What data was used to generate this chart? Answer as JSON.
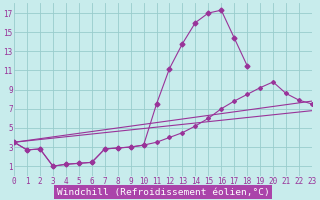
{
  "bg_color": "#c8ecec",
  "line_color": "#993399",
  "grid_color": "#99cccc",
  "xlabel": "Windchill (Refroidissement éolien,°C)",
  "xlabel_color": "#993399",
  "xlabel_bg": "#aa44aa",
  "tick_fontsize": 5.5,
  "xlabel_fontsize": 6.8,
  "xlim_min": 0,
  "xlim_max": 23,
  "ylim_min": 0,
  "ylim_max": 18,
  "yticks": [
    1,
    3,
    5,
    7,
    9,
    11,
    13,
    15,
    17
  ],
  "xticks": [
    0,
    1,
    2,
    3,
    4,
    5,
    6,
    7,
    8,
    9,
    10,
    11,
    12,
    13,
    14,
    15,
    16,
    17,
    18,
    19,
    20,
    21,
    22,
    23
  ],
  "curve1_x": [
    0,
    1,
    2,
    3,
    4,
    5,
    6,
    7,
    8,
    9,
    10,
    11,
    12,
    13,
    14,
    15,
    16,
    17,
    18
  ],
  "curve1_y": [
    3.5,
    2.7,
    2.8,
    1.0,
    1.2,
    1.3,
    1.4,
    2.8,
    2.9,
    3.0,
    3.2,
    7.5,
    11.2,
    13.8,
    16.0,
    17.0,
    17.3,
    14.4,
    11.5
  ],
  "curve2_x": [
    0,
    1,
    2,
    3,
    4,
    5,
    6,
    7,
    8,
    9,
    10,
    11,
    12,
    13,
    14,
    15,
    16,
    17,
    18,
    19,
    20,
    21,
    22,
    23
  ],
  "curve2_y": [
    3.5,
    2.7,
    2.8,
    1.0,
    1.2,
    1.3,
    1.4,
    2.8,
    2.9,
    3.0,
    3.2,
    3.5,
    4.0,
    4.5,
    5.2,
    6.0,
    7.0,
    7.8,
    8.5,
    9.2,
    9.8,
    8.6,
    7.9,
    7.5
  ],
  "line3_x": [
    0,
    23
  ],
  "line3_y": [
    3.5,
    7.8
  ],
  "line4_x": [
    0,
    23
  ],
  "line4_y": [
    3.5,
    6.8
  ]
}
